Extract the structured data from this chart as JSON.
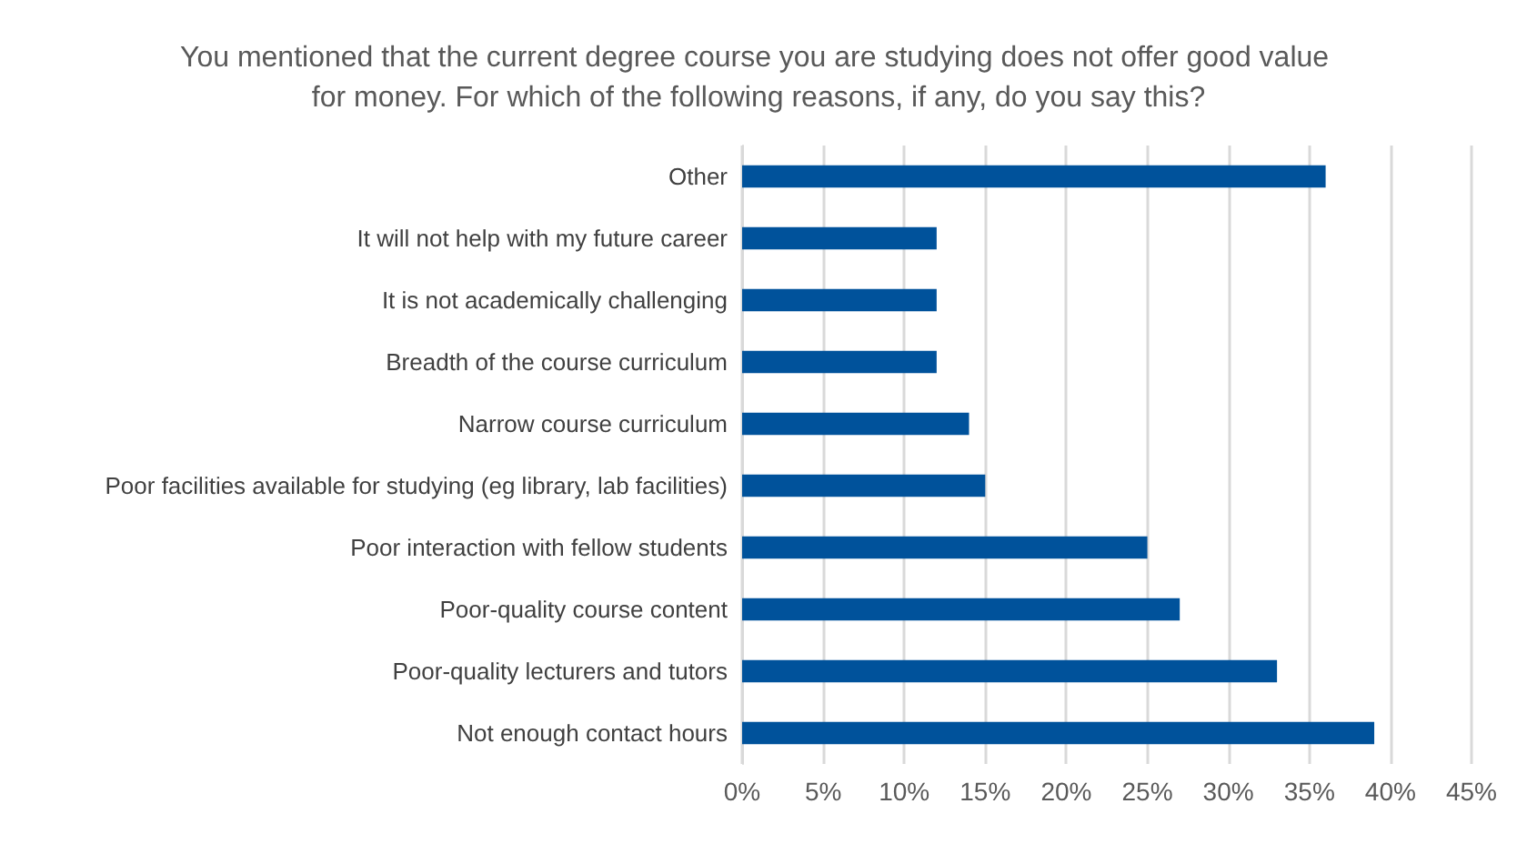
{
  "chart_data": {
    "type": "bar",
    "orientation": "horizontal",
    "title": "You mentioned that the current degree course you are studying does not offer good value for money. For which of the following reasons, if any, do you say this?",
    "categories": [
      "Other",
      "It will not help with my future career",
      "It is not academically challenging",
      "Breadth of the course curriculum",
      "Narrow course curriculum",
      "Poor facilities available for studying (eg library, lab facilities)",
      "Poor interaction with fellow students",
      "Poor-quality course content",
      "Poor-quality lecturers and tutors",
      "Not enough contact hours"
    ],
    "values": [
      36,
      12,
      12,
      12,
      14,
      15,
      25,
      27,
      33,
      39
    ],
    "color": "#00529b",
    "xlim": [
      0,
      45
    ],
    "xticks": [
      {
        "value": 0,
        "label": "0%"
      },
      {
        "value": 5,
        "label": "5%"
      },
      {
        "value": 10,
        "label": "10%"
      },
      {
        "value": 15,
        "label": "15%"
      },
      {
        "value": 20,
        "label": "20%"
      },
      {
        "value": 25,
        "label": "25%"
      },
      {
        "value": 30,
        "label": "30%"
      },
      {
        "value": 35,
        "label": "35%"
      },
      {
        "value": 40,
        "label": "40%"
      },
      {
        "value": 45,
        "label": "45%"
      }
    ],
    "grid": "x"
  }
}
